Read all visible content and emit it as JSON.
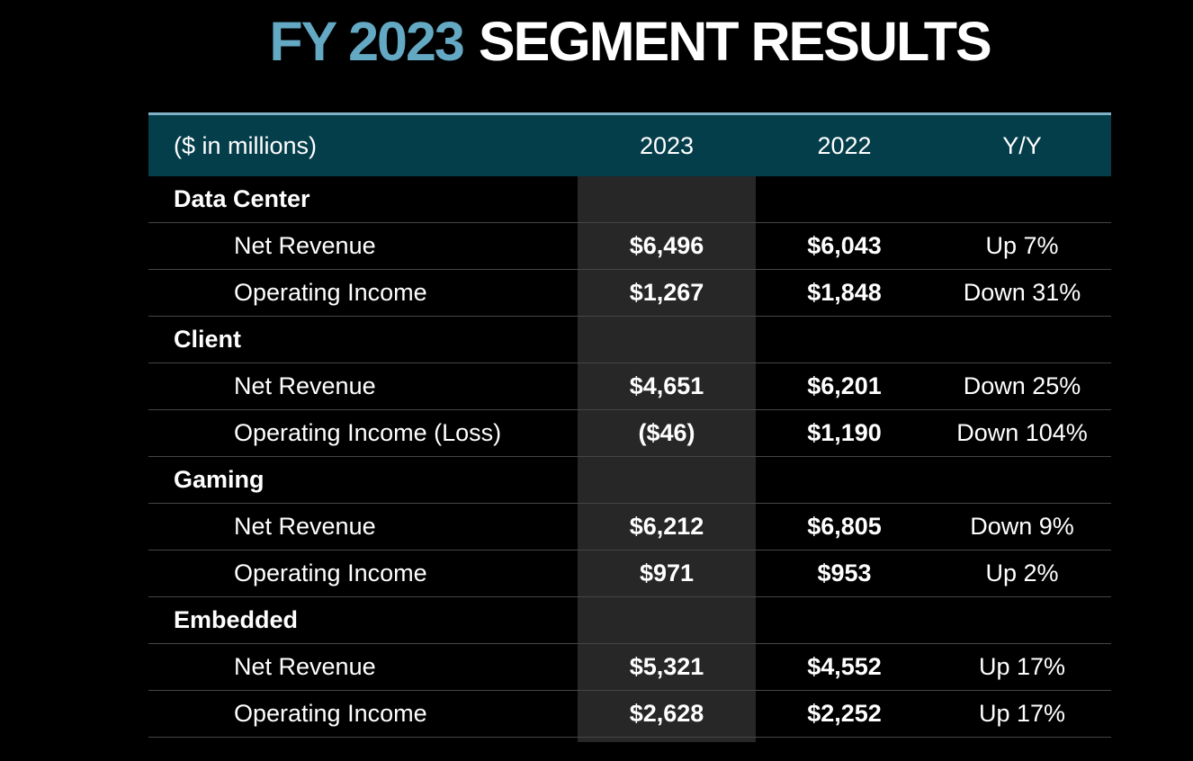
{
  "title": {
    "fiscal_year": "FY 2023",
    "rest": "SEGMENT RESULTS"
  },
  "colors": {
    "accent_blue": "#64a9c4",
    "header_teal": "#053e4b",
    "header_top_border": "#7fb2c7",
    "highlight_column": "#272727",
    "row_divider": "#454545",
    "background": "#000000",
    "text": "#ffffff"
  },
  "table": {
    "header": {
      "label": "($ in millions)",
      "col_2023": "2023",
      "col_2022": "2022",
      "col_yy": "Y/Y"
    },
    "highlighted_column": "2023",
    "sections": [
      {
        "name": "Data Center",
        "rows": [
          {
            "label": "Net Revenue",
            "v2023": "$6,496",
            "v2022": "$6,043",
            "yy": "Up 7%"
          },
          {
            "label": "Operating Income",
            "v2023": "$1,267",
            "v2022": "$1,848",
            "yy": "Down 31%"
          }
        ]
      },
      {
        "name": "Client",
        "rows": [
          {
            "label": "Net Revenue",
            "v2023": "$4,651",
            "v2022": "$6,201",
            "yy": "Down 25%"
          },
          {
            "label": "Operating Income (Loss)",
            "v2023": "($46)",
            "v2022": "$1,190",
            "yy": "Down 104%"
          }
        ]
      },
      {
        "name": "Gaming",
        "rows": [
          {
            "label": "Net Revenue",
            "v2023": "$6,212",
            "v2022": "$6,805",
            "yy": "Down 9%"
          },
          {
            "label": "Operating Income",
            "v2023": "$971",
            "v2022": "$953",
            "yy": "Up 2%"
          }
        ]
      },
      {
        "name": "Embedded",
        "rows": [
          {
            "label": "Net Revenue",
            "v2023": "$5,321",
            "v2022": "$4,552",
            "yy": "Up 17%"
          },
          {
            "label": "Operating Income",
            "v2023": "$2,628",
            "v2022": "$2,252",
            "yy": "Up 17%"
          }
        ]
      }
    ]
  }
}
